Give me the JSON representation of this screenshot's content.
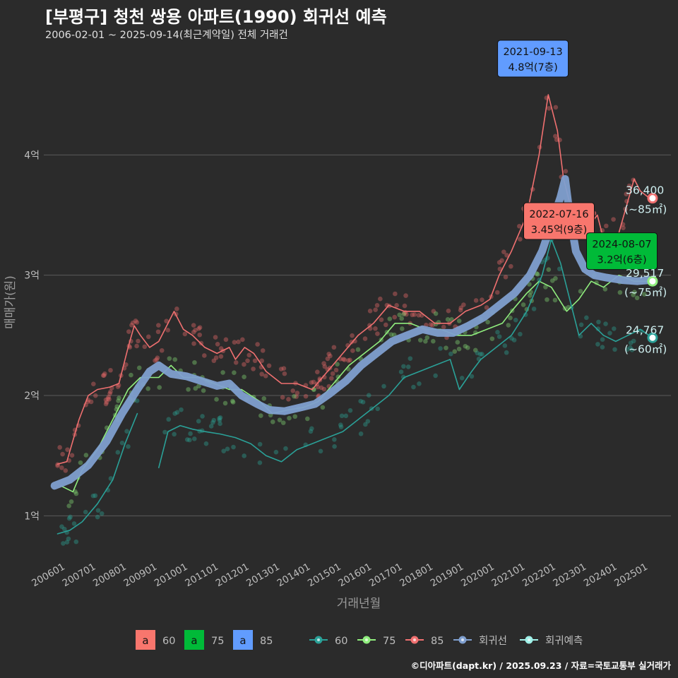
{
  "title": "[부평구] 청천 쌍용 아파트(1990) 회귀선 예측",
  "subtitle": "2006-02-01 ~ 2025-09-14(최근계약일) 전체 거래건",
  "caption": "©디아파트(dapt.kr) / 2025.09.23 / 자료=국토교통부 실거래가",
  "colors": {
    "background": "#2b2b2b",
    "grid": "#5a5a5a",
    "s60": "#2aa198",
    "s75": "#90ee7e",
    "s85": "#f07070",
    "regression": "#7f9fcf",
    "forecast": "#9ff0e8",
    "label60": "#f8766d",
    "label75": "#00ba38",
    "label85": "#619cff"
  },
  "chart_data": {
    "type": "line",
    "xlabel": "거래년월",
    "ylabel": "매매가(원)",
    "x_ticks": [
      "200601",
      "200701",
      "200801",
      "200901",
      "201001",
      "201101",
      "201201",
      "201301",
      "201401",
      "201501",
      "201601",
      "201701",
      "201801",
      "201901",
      "202001",
      "202101",
      "202201",
      "202301",
      "202401",
      "202501"
    ],
    "y_ticks": [
      {
        "value": 1,
        "label": "1억"
      },
      {
        "value": 2,
        "label": "2억"
      },
      {
        "value": 3,
        "label": "3억"
      },
      {
        "value": 4,
        "label": "4억"
      }
    ],
    "xlim": [
      2005.75,
      2026.2
    ],
    "ylim": [
      0.65,
      4.9
    ],
    "grid": true,
    "legend_position": "bottom",
    "legend_fill": [
      {
        "key": "a",
        "label": "60",
        "color": "#f8766d"
      },
      {
        "key": "a",
        "label": "75",
        "color": "#00ba38"
      },
      {
        "key": "a",
        "label": "85",
        "color": "#619cff"
      }
    ],
    "legend_lines": [
      {
        "label": "60",
        "color": "#2aa198"
      },
      {
        "label": "75",
        "color": "#90ee7e"
      },
      {
        "label": "85",
        "color": "#f07070"
      },
      {
        "label": "회귀선",
        "color": "#7f9fcf"
      },
      {
        "label": "회귀예측",
        "color": "#9ff0e8"
      }
    ],
    "series": [
      {
        "name": "85",
        "color": "#f07070",
        "points": [
          [
            2006.2,
            1.43
          ],
          [
            2006.5,
            1.45
          ],
          [
            2006.9,
            1.8
          ],
          [
            2007.2,
            2.0
          ],
          [
            2007.5,
            2.05
          ],
          [
            2007.9,
            2.07
          ],
          [
            2008.2,
            2.1
          ],
          [
            2008.5,
            2.4
          ],
          [
            2008.7,
            2.58
          ],
          [
            2008.9,
            2.5
          ],
          [
            2009.2,
            2.4
          ],
          [
            2009.5,
            2.45
          ],
          [
            2009.8,
            2.6
          ],
          [
            2010.0,
            2.7
          ],
          [
            2010.3,
            2.55
          ],
          [
            2010.6,
            2.5
          ],
          [
            2011.0,
            2.4
          ],
          [
            2011.4,
            2.35
          ],
          [
            2011.8,
            2.4
          ],
          [
            2012.0,
            2.3
          ],
          [
            2012.3,
            2.4
          ],
          [
            2012.6,
            2.35
          ],
          [
            2013.0,
            2.2
          ],
          [
            2013.5,
            2.1
          ],
          [
            2014.0,
            2.1
          ],
          [
            2014.5,
            2.05
          ],
          [
            2015.0,
            2.2
          ],
          [
            2015.5,
            2.35
          ],
          [
            2016.0,
            2.5
          ],
          [
            2016.5,
            2.6
          ],
          [
            2017.0,
            2.75
          ],
          [
            2017.5,
            2.7
          ],
          [
            2018.0,
            2.7
          ],
          [
            2018.5,
            2.6
          ],
          [
            2019.0,
            2.6
          ],
          [
            2019.5,
            2.7
          ],
          [
            2020.0,
            2.75
          ],
          [
            2020.3,
            2.8
          ],
          [
            2020.6,
            3.0
          ],
          [
            2021.0,
            3.2
          ],
          [
            2021.5,
            3.5
          ],
          [
            2021.9,
            4.0
          ],
          [
            2022.2,
            4.5
          ],
          [
            2022.5,
            4.2
          ],
          [
            2022.7,
            3.8
          ],
          [
            2023.0,
            3.5
          ],
          [
            2023.5,
            3.4
          ],
          [
            2023.8,
            3.5
          ],
          [
            2024.0,
            3.3
          ],
          [
            2024.5,
            3.35
          ],
          [
            2025.0,
            3.8
          ],
          [
            2025.2,
            3.7
          ],
          [
            2025.5,
            3.64
          ]
        ]
      },
      {
        "name": "75",
        "color": "#90ee7e",
        "points": [
          [
            2006.3,
            1.25
          ],
          [
            2006.7,
            1.2
          ],
          [
            2007.0,
            1.38
          ],
          [
            2007.5,
            1.55
          ],
          [
            2008.0,
            1.8
          ],
          [
            2008.5,
            2.05
          ],
          [
            2008.9,
            2.15
          ],
          [
            2009.5,
            2.15
          ],
          [
            2009.9,
            2.25
          ],
          [
            2010.3,
            2.15
          ],
          [
            2010.8,
            2.15
          ],
          [
            2011.3,
            2.1
          ],
          [
            2011.8,
            2.05
          ],
          [
            2012.2,
            2.05
          ],
          [
            2012.8,
            1.95
          ],
          [
            2013.2,
            1.85
          ],
          [
            2013.7,
            1.88
          ],
          [
            2014.2,
            1.9
          ],
          [
            2014.7,
            1.95
          ],
          [
            2015.2,
            2.1
          ],
          [
            2015.7,
            2.25
          ],
          [
            2016.2,
            2.35
          ],
          [
            2016.7,
            2.45
          ],
          [
            2017.2,
            2.6
          ],
          [
            2017.7,
            2.6
          ],
          [
            2018.2,
            2.55
          ],
          [
            2018.7,
            2.55
          ],
          [
            2019.2,
            2.5
          ],
          [
            2019.7,
            2.5
          ],
          [
            2020.2,
            2.55
          ],
          [
            2020.7,
            2.6
          ],
          [
            2021.0,
            2.7
          ],
          [
            2021.5,
            2.85
          ],
          [
            2021.9,
            2.95
          ],
          [
            2022.3,
            2.9
          ],
          [
            2022.8,
            2.7
          ],
          [
            2023.2,
            2.8
          ],
          [
            2023.6,
            2.95
          ],
          [
            2024.0,
            2.9
          ],
          [
            2024.5,
            3.0
          ],
          [
            2025.0,
            2.95
          ],
          [
            2025.5,
            2.95
          ]
        ]
      },
      {
        "name": "60",
        "color": "#2aa198",
        "points": [
          [
            2006.2,
            0.85
          ],
          [
            2006.6,
            0.88
          ],
          [
            2007.0,
            0.95
          ],
          [
            2007.5,
            1.1
          ],
          [
            2008.0,
            1.3
          ],
          [
            2008.4,
            1.6
          ],
          [
            2008.8,
            1.85
          ],
          [
            2009.3,
            null
          ],
          [
            2009.5,
            1.4
          ],
          [
            2009.8,
            1.7
          ],
          [
            2010.2,
            1.75
          ],
          [
            2010.6,
            1.72
          ],
          [
            2011.0,
            1.7
          ],
          [
            2011.5,
            1.68
          ],
          [
            2012.0,
            1.65
          ],
          [
            2012.5,
            1.6
          ],
          [
            2013.0,
            1.5
          ],
          [
            2013.5,
            1.45
          ],
          [
            2014.0,
            1.55
          ],
          [
            2014.5,
            1.6
          ],
          [
            2015.0,
            1.65
          ],
          [
            2015.5,
            1.7
          ],
          [
            2016.0,
            1.8
          ],
          [
            2016.5,
            1.9
          ],
          [
            2017.0,
            2.0
          ],
          [
            2017.5,
            2.15
          ],
          [
            2018.0,
            2.2
          ],
          [
            2018.5,
            2.25
          ],
          [
            2019.0,
            2.3
          ],
          [
            2019.3,
            2.05
          ],
          [
            2019.7,
            2.2
          ],
          [
            2020.0,
            2.3
          ],
          [
            2020.5,
            2.4
          ],
          [
            2021.0,
            2.5
          ],
          [
            2021.5,
            2.7
          ],
          [
            2022.0,
            3.0
          ],
          [
            2022.3,
            3.3
          ],
          [
            2022.6,
            3.1
          ],
          [
            2022.9,
            2.8
          ],
          [
            2023.2,
            2.5
          ],
          [
            2023.6,
            2.6
          ],
          [
            2024.0,
            2.5
          ],
          [
            2024.4,
            2.45
          ],
          [
            2024.8,
            2.5
          ],
          [
            2025.2,
            2.55
          ],
          [
            2025.6,
            2.48
          ]
        ]
      },
      {
        "name": "회귀선",
        "color": "#7f9fcf",
        "points": [
          [
            2006.1,
            1.25
          ],
          [
            2006.6,
            1.3
          ],
          [
            2007.2,
            1.42
          ],
          [
            2007.8,
            1.62
          ],
          [
            2008.3,
            1.85
          ],
          [
            2008.8,
            2.05
          ],
          [
            2009.2,
            2.2
          ],
          [
            2009.5,
            2.25
          ],
          [
            2009.9,
            2.18
          ],
          [
            2010.4,
            2.16
          ],
          [
            2010.9,
            2.12
          ],
          [
            2011.4,
            2.08
          ],
          [
            2011.8,
            2.1
          ],
          [
            2012.2,
            2.0
          ],
          [
            2012.7,
            1.93
          ],
          [
            2013.1,
            1.88
          ],
          [
            2013.6,
            1.87
          ],
          [
            2014.1,
            1.9
          ],
          [
            2014.6,
            1.93
          ],
          [
            2015.1,
            2.02
          ],
          [
            2015.6,
            2.12
          ],
          [
            2016.1,
            2.25
          ],
          [
            2016.6,
            2.35
          ],
          [
            2017.1,
            2.45
          ],
          [
            2017.6,
            2.5
          ],
          [
            2018.1,
            2.55
          ],
          [
            2018.6,
            2.52
          ],
          [
            2019.1,
            2.52
          ],
          [
            2019.6,
            2.58
          ],
          [
            2020.1,
            2.65
          ],
          [
            2020.6,
            2.75
          ],
          [
            2021.1,
            2.85
          ],
          [
            2021.6,
            3.0
          ],
          [
            2022.0,
            3.2
          ],
          [
            2022.4,
            3.5
          ],
          [
            2022.6,
            3.65
          ],
          [
            2022.75,
            3.8
          ],
          [
            2022.9,
            3.5
          ],
          [
            2023.1,
            3.2
          ],
          [
            2023.4,
            3.05
          ],
          [
            2023.7,
            3.0
          ],
          [
            2024.1,
            2.98
          ],
          [
            2024.6,
            2.96
          ],
          [
            2025.1,
            2.95
          ],
          [
            2025.5,
            2.96
          ]
        ]
      }
    ],
    "callouts": [
      {
        "date": "2021-09-13",
        "value": "4.8억(7층)",
        "color": "#619cff",
        "x": 2021.7,
        "y": 4.8
      },
      {
        "date": "2022-07-16",
        "value": "3.45억(9층)",
        "color": "#f8766d",
        "x": 2022.55,
        "y": 3.45
      },
      {
        "date": "2024-08-07",
        "value": "3.2억(6층)",
        "color": "#00ba38",
        "x": 2024.6,
        "y": 3.2
      }
    ],
    "end_labels": [
      {
        "value": "36,400",
        "area": "(~85㎡)",
        "y": 3.64,
        "color": "#f07070"
      },
      {
        "value": "29,517",
        "area": "(~75㎡)",
        "y": 2.95,
        "color": "#90ee7e"
      },
      {
        "value": "24,767",
        "area": "(~60㎡)",
        "y": 2.48,
        "color": "#2aa198"
      }
    ]
  }
}
